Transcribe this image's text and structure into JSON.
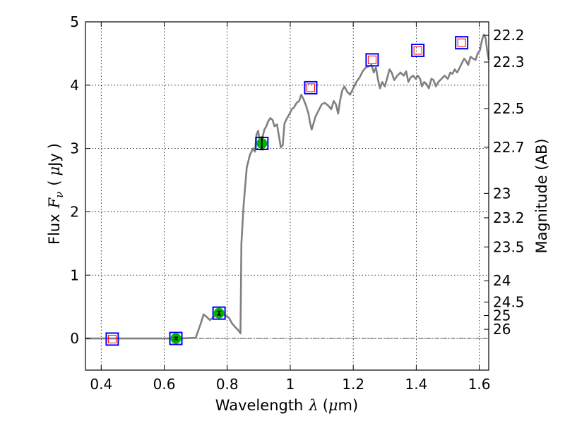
{
  "chart_data": {
    "type": "scatter",
    "xlabel": {
      "prefix": "Wavelength",
      "symbol": "λ",
      "unit_open": "(",
      "unit_mu": "μ",
      "unit_rest": "m)"
    },
    "ylabel": {
      "prefix": "Flux",
      "symbol": "F",
      "subscript": "ν",
      "unit_open": "(",
      "unit_mu": "μ",
      "unit_rest": "Jy",
      "unit_close": ")"
    },
    "y2label": "Magnitude (AB)",
    "xlim": [
      0.35,
      1.63
    ],
    "ylim": [
      -0.5,
      5
    ],
    "grid": true,
    "x_ticks": [
      {
        "value": 0.4,
        "label": "0.4"
      },
      {
        "value": 0.6,
        "label": "0.6"
      },
      {
        "value": 0.8,
        "label": "0.8"
      },
      {
        "value": 1.0,
        "label": "1"
      },
      {
        "value": 1.2,
        "label": "1.2"
      },
      {
        "value": 1.4,
        "label": "1.4"
      },
      {
        "value": 1.6,
        "label": "1.6"
      }
    ],
    "y_ticks": [
      {
        "value": 0,
        "label": "0"
      },
      {
        "value": 1,
        "label": "1"
      },
      {
        "value": 2,
        "label": "2"
      },
      {
        "value": 3,
        "label": "3"
      },
      {
        "value": 4,
        "label": "4"
      },
      {
        "value": 5,
        "label": "5"
      }
    ],
    "y2_ticks": [
      {
        "value": 22.2,
        "label": "22.2"
      },
      {
        "value": 22.3,
        "label": "22.3"
      },
      {
        "value": 22.5,
        "label": "22.5"
      },
      {
        "value": 22.7,
        "label": "22.7"
      },
      {
        "value": 23,
        "label": "23"
      },
      {
        "value": 23.2,
        "label": "23.2"
      },
      {
        "value": 23.5,
        "label": "23.5"
      },
      {
        "value": 24,
        "label": "24"
      },
      {
        "value": 24.5,
        "label": "24.5"
      },
      {
        "value": 25,
        "label": "25"
      },
      {
        "value": 26,
        "label": "26"
      }
    ],
    "zero_line": true,
    "series": [
      {
        "kind": "line",
        "color": "#808080",
        "points": [
          [
            0.35,
            0.0
          ],
          [
            0.45,
            0.0
          ],
          [
            0.55,
            0.0
          ],
          [
            0.65,
            0.0
          ],
          [
            0.7,
            0.01
          ],
          [
            0.715,
            0.22
          ],
          [
            0.725,
            0.38
          ],
          [
            0.735,
            0.34
          ],
          [
            0.745,
            0.29
          ],
          [
            0.755,
            0.33
          ],
          [
            0.765,
            0.38
          ],
          [
            0.775,
            0.36
          ],
          [
            0.785,
            0.4
          ],
          [
            0.795,
            0.36
          ],
          [
            0.805,
            0.33
          ],
          [
            0.815,
            0.24
          ],
          [
            0.825,
            0.18
          ],
          [
            0.835,
            0.13
          ],
          [
            0.842,
            0.08
          ],
          [
            0.845,
            1.5
          ],
          [
            0.852,
            2.1
          ],
          [
            0.862,
            2.7
          ],
          [
            0.872,
            2.9
          ],
          [
            0.882,
            3.0
          ],
          [
            0.888,
            2.95
          ],
          [
            0.893,
            3.22
          ],
          [
            0.898,
            3.28
          ],
          [
            0.905,
            3.05
          ],
          [
            0.912,
            3.18
          ],
          [
            0.918,
            3.3
          ],
          [
            0.924,
            3.35
          ],
          [
            0.93,
            3.43
          ],
          [
            0.937,
            3.48
          ],
          [
            0.944,
            3.45
          ],
          [
            0.95,
            3.35
          ],
          [
            0.958,
            3.38
          ],
          [
            0.964,
            3.2
          ],
          [
            0.97,
            3.02
          ],
          [
            0.976,
            3.05
          ],
          [
            0.982,
            3.4
          ],
          [
            0.99,
            3.48
          ],
          [
            0.998,
            3.55
          ],
          [
            1.005,
            3.62
          ],
          [
            1.012,
            3.65
          ],
          [
            1.02,
            3.72
          ],
          [
            1.028,
            3.75
          ],
          [
            1.035,
            3.85
          ],
          [
            1.042,
            3.78
          ],
          [
            1.05,
            3.68
          ],
          [
            1.058,
            3.55
          ],
          [
            1.063,
            3.4
          ],
          [
            1.068,
            3.3
          ],
          [
            1.073,
            3.38
          ],
          [
            1.08,
            3.5
          ],
          [
            1.09,
            3.6
          ],
          [
            1.1,
            3.7
          ],
          [
            1.11,
            3.72
          ],
          [
            1.12,
            3.68
          ],
          [
            1.13,
            3.62
          ],
          [
            1.138,
            3.75
          ],
          [
            1.145,
            3.7
          ],
          [
            1.152,
            3.55
          ],
          [
            1.158,
            3.75
          ],
          [
            1.165,
            3.92
          ],
          [
            1.172,
            3.98
          ],
          [
            1.18,
            3.9
          ],
          [
            1.19,
            3.85
          ],
          [
            1.2,
            3.95
          ],
          [
            1.21,
            4.05
          ],
          [
            1.22,
            4.12
          ],
          [
            1.23,
            4.22
          ],
          [
            1.24,
            4.28
          ],
          [
            1.25,
            4.3
          ],
          [
            1.258,
            4.32
          ],
          [
            1.265,
            4.2
          ],
          [
            1.272,
            4.28
          ],
          [
            1.278,
            4.1
          ],
          [
            1.285,
            3.95
          ],
          [
            1.292,
            4.05
          ],
          [
            1.3,
            3.98
          ],
          [
            1.308,
            4.12
          ],
          [
            1.315,
            4.25
          ],
          [
            1.322,
            4.2
          ],
          [
            1.33,
            4.08
          ],
          [
            1.34,
            4.15
          ],
          [
            1.35,
            4.2
          ],
          [
            1.36,
            4.15
          ],
          [
            1.368,
            4.22
          ],
          [
            1.375,
            4.05
          ],
          [
            1.382,
            4.12
          ],
          [
            1.39,
            4.15
          ],
          [
            1.398,
            4.1
          ],
          [
            1.405,
            4.15
          ],
          [
            1.412,
            4.1
          ],
          [
            1.418,
            3.98
          ],
          [
            1.425,
            4.05
          ],
          [
            1.432,
            4.02
          ],
          [
            1.44,
            3.95
          ],
          [
            1.448,
            4.1
          ],
          [
            1.455,
            4.08
          ],
          [
            1.462,
            3.98
          ],
          [
            1.47,
            4.05
          ],
          [
            1.48,
            4.1
          ],
          [
            1.49,
            4.15
          ],
          [
            1.5,
            4.1
          ],
          [
            1.508,
            4.2
          ],
          [
            1.515,
            4.18
          ],
          [
            1.522,
            4.25
          ],
          [
            1.53,
            4.2
          ],
          [
            1.538,
            4.28
          ],
          [
            1.545,
            4.35
          ],
          [
            1.552,
            4.42
          ],
          [
            1.558,
            4.38
          ],
          [
            1.565,
            4.32
          ],
          [
            1.572,
            4.45
          ],
          [
            1.58,
            4.42
          ],
          [
            1.588,
            4.4
          ],
          [
            1.595,
            4.5
          ],
          [
            1.602,
            4.55
          ],
          [
            1.608,
            4.7
          ],
          [
            1.614,
            4.8
          ],
          [
            1.62,
            4.75
          ],
          [
            1.625,
            4.55
          ],
          [
            1.63,
            4.4
          ]
        ]
      },
      {
        "kind": "model_photometry",
        "marker": "square",
        "edge_color": "#0000ff",
        "points": [
          [
            0.435,
            -0.01
          ],
          [
            0.637,
            0.0
          ],
          [
            0.774,
            0.4
          ],
          [
            0.91,
            3.08
          ],
          [
            1.065,
            3.96
          ],
          [
            1.26,
            4.4
          ],
          [
            1.405,
            4.55
          ],
          [
            1.544,
            4.67
          ]
        ]
      },
      {
        "kind": "upper_limits",
        "marker": "square",
        "edge_color": "#ff0000",
        "points": [
          [
            0.435,
            -0.01
          ],
          [
            1.065,
            3.96
          ],
          [
            1.26,
            4.4
          ],
          [
            1.405,
            4.55
          ],
          [
            1.544,
            4.67
          ]
        ]
      },
      {
        "kind": "detections",
        "marker": "circle",
        "face_color": "#00b400",
        "points": [
          [
            0.637,
            0.0,
            0.02
          ],
          [
            0.774,
            0.4,
            0.03
          ],
          [
            0.91,
            3.08,
            0.1
          ]
        ]
      }
    ]
  }
}
